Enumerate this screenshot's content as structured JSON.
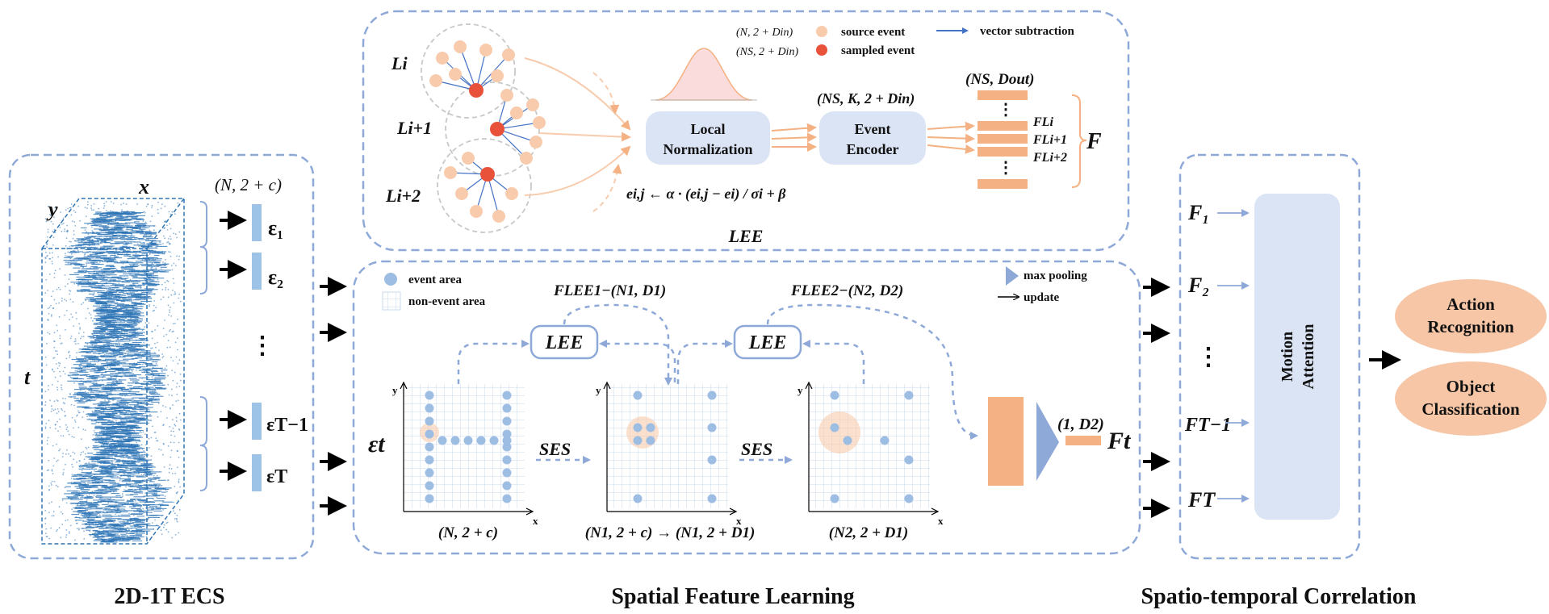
{
  "colors": {
    "panel_border": "#8ea9d8",
    "node_light_blue": "#dbe4f5",
    "orange": "#f4b183",
    "light_orange": "#f8cbad",
    "red_event": "#e8523a",
    "event_blue": "#9dbde3",
    "scatter_blue": "#2e75b6",
    "output_fill": "#f6c6a6"
  },
  "panel_labels": {
    "ecs": "2D-1T ECS",
    "spatial": "Spatial Feature Learning",
    "temporal": "Spatio-temporal Correlation"
  },
  "ecs": {
    "axis_x": "x",
    "axis_y": "y",
    "axis_t": "t",
    "shape": "(N, 2 + c)",
    "frames": [
      "ε₁",
      "ε₂",
      "⋮",
      "εT−1",
      "εT"
    ]
  },
  "lee_module": {
    "title": "LEE",
    "legend": {
      "source_shape": "(N, 2 + Din)",
      "sampled_shape": "(NS, 2 + Din)",
      "source_event": "source event",
      "sampled_event": "sampled event",
      "vector_subtraction": "vector subtraction"
    },
    "groups": [
      "Li",
      "Li+1",
      "Li+2"
    ],
    "local_norm": [
      "Local",
      "Normalization"
    ],
    "encoder": [
      "Event",
      "Encoder"
    ],
    "encoder_shape": "(NS, K, 2 + Din)",
    "output_shape": "(NS, Dout)",
    "features": [
      "FLi",
      "FLi+1",
      "FLi+2"
    ],
    "F": "F",
    "formula": "ei,j ← α · (ei,j − ei) / σi + β"
  },
  "spatial": {
    "legend": {
      "event_area": "event area",
      "non_event_area": "non-event area",
      "max_pooling": "max pooling",
      "update": "update"
    },
    "lee_label": "LEE",
    "lee1_label": "FLEE1−(N1, D1)",
    "lee2_label": "FLEE2−(N2, D2)",
    "input": "εt",
    "ses": "SES",
    "grid_axis_x": "x",
    "grid_axis_y": "y",
    "shape1": "(N, 2 + c)",
    "shape2": "(N1, 2 + c) → (N1, 2 + D1)",
    "shape3": "(N2, 2 + D1)",
    "pool_shape": "(1, D2)",
    "output": "Ft"
  },
  "temporal": {
    "features": [
      "F₁",
      "F₂",
      "⋮",
      "FT−1",
      "FT"
    ],
    "attention": [
      "Motion",
      "Attention"
    ]
  },
  "outputs": [
    [
      "Action",
      "Recognition"
    ],
    [
      "Object",
      "Classification"
    ]
  ]
}
